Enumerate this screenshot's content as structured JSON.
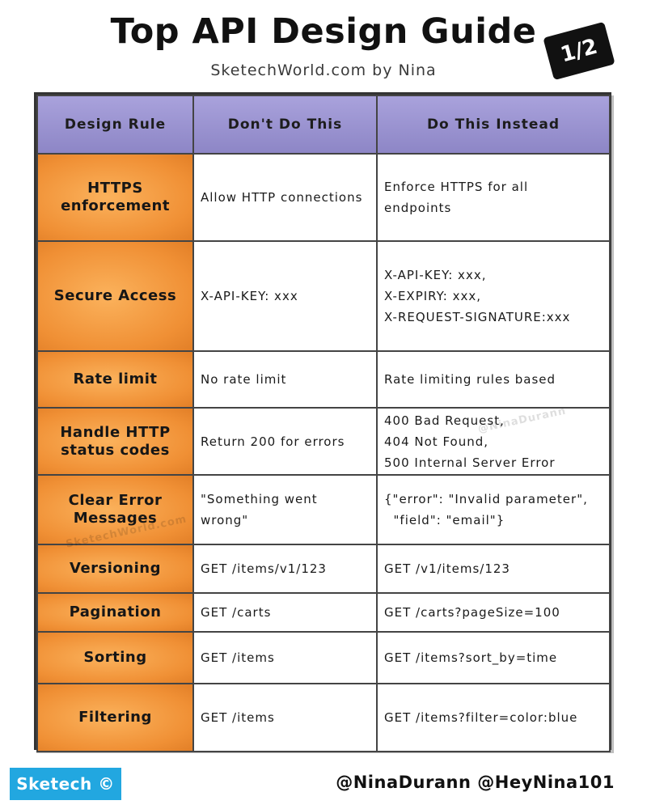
{
  "header": {
    "title": "Top API Design Guide",
    "subtitle": "SketechWorld.com by Nina",
    "page_badge": "1/2"
  },
  "table": {
    "columns": [
      "Design Rule",
      "Don't Do This",
      "Do This Instead"
    ],
    "rows": [
      {
        "rule": "HTTPS\nenforcement",
        "dont": "Allow HTTP connections",
        "do": "Enforce HTTPS for all\nendpoints"
      },
      {
        "rule": "Secure Access",
        "dont": "X-API-KEY: xxx",
        "do": "X-API-KEY: xxx,\nX-EXPIRY: xxx,\nX-REQUEST-SIGNATURE:xxx"
      },
      {
        "rule": "Rate limit",
        "dont": "No rate limit",
        "do": "Rate limiting rules based"
      },
      {
        "rule": "Handle HTTP\nstatus codes",
        "dont": "Return 200 for errors",
        "do": "400 Bad Request,\n404 Not Found,\n500 Internal Server Error"
      },
      {
        "rule": "Clear Error\nMessages",
        "dont": "\"Something went wrong\"",
        "do": "{\"error\": \"Invalid parameter\",\n  \"field\": \"email\"}"
      },
      {
        "rule": "Versioning",
        "dont": "GET /items/v1/123",
        "do": "GET /v1/items/123"
      },
      {
        "rule": "Pagination",
        "dont": "GET /carts",
        "do": "GET /carts?pageSize=100"
      },
      {
        "rule": "Sorting",
        "dont": "GET /items",
        "do": "GET /items?sort_by=time"
      },
      {
        "rule": "Filtering",
        "dont": "GET /items",
        "do": "GET /items?filter=color:blue"
      }
    ]
  },
  "watermarks": {
    "a": "@NinaDurann",
    "b": "SketechWorld.com"
  },
  "footer": {
    "brand": "Sketech ©",
    "handles": "@NinaDurann @HeyNina101"
  },
  "colors": {
    "header_purple": "#9d96d4",
    "rule_orange": "#f5a047",
    "brand_blue": "#22a7e0"
  }
}
